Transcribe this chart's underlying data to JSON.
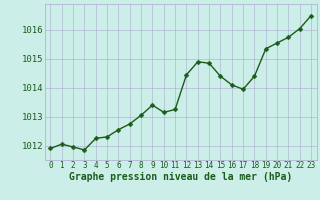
{
  "x": [
    0,
    1,
    2,
    3,
    4,
    5,
    6,
    7,
    8,
    9,
    10,
    11,
    12,
    13,
    14,
    15,
    16,
    17,
    18,
    19,
    20,
    21,
    22,
    23
  ],
  "y": [
    1011.9,
    1012.05,
    1011.95,
    1011.85,
    1012.25,
    1012.3,
    1012.55,
    1012.75,
    1013.05,
    1013.4,
    1013.15,
    1013.25,
    1014.45,
    1014.9,
    1014.85,
    1014.4,
    1014.1,
    1013.95,
    1014.4,
    1015.35,
    1015.55,
    1015.75,
    1016.05,
    1016.5
  ],
  "line_color": "#1a5c1a",
  "marker": "D",
  "marker_size": 2.5,
  "line_width": 1.0,
  "bg_color": "#cceee8",
  "grid_color": "#aaaacc",
  "ylabel_ticks": [
    1012,
    1013,
    1014,
    1015,
    1016
  ],
  "xticks": [
    0,
    1,
    2,
    3,
    4,
    5,
    6,
    7,
    8,
    9,
    10,
    11,
    12,
    13,
    14,
    15,
    16,
    17,
    18,
    19,
    20,
    21,
    22,
    23
  ],
  "xlim": [
    -0.5,
    23.5
  ],
  "ylim": [
    1011.5,
    1016.9
  ],
  "xlabel": "Graphe pression niveau de la mer (hPa)",
  "xlabel_fontsize": 7,
  "tick_fontsize": 5.5,
  "ylabel_fontsize": 6.5,
  "axis_label_color": "#1a5c1a",
  "tick_color": "#1a5c1a"
}
